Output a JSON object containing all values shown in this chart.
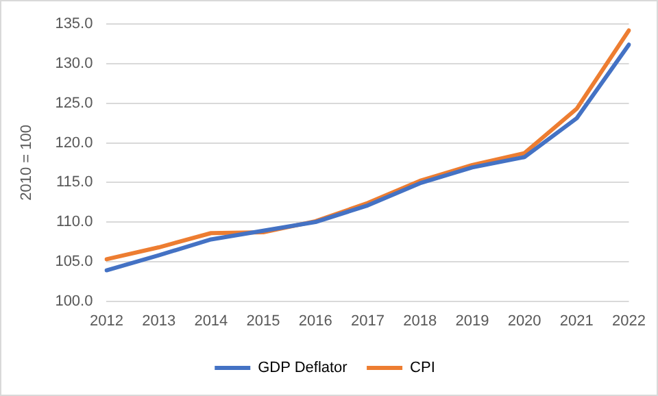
{
  "chart_data": {
    "type": "line",
    "ylabel": "2010 = 100",
    "categories": [
      "2012",
      "2013",
      "2014",
      "2015",
      "2016",
      "2017",
      "2018",
      "2019",
      "2020",
      "2021",
      "2022"
    ],
    "series": [
      {
        "name": "GDP Deflator",
        "color": "#4472c4",
        "values": [
          103.9,
          105.8,
          107.8,
          108.9,
          110.0,
          112.1,
          114.9,
          116.9,
          118.2,
          123.1,
          132.4
        ]
      },
      {
        "name": "CPI",
        "color": "#ed7d31",
        "values": [
          105.3,
          106.8,
          108.6,
          108.7,
          110.1,
          112.4,
          115.2,
          117.2,
          118.7,
          124.3,
          134.2
        ]
      }
    ],
    "ylim": [
      100,
      135
    ],
    "yticks": [
      {
        "value": 100,
        "label": "100.0"
      },
      {
        "value": 105,
        "label": "105.0"
      },
      {
        "value": 110,
        "label": "110.0"
      },
      {
        "value": 115,
        "label": "115.0"
      },
      {
        "value": 120,
        "label": "120.0"
      },
      {
        "value": 125,
        "label": "125.0"
      },
      {
        "value": 130,
        "label": "130.0"
      },
      {
        "value": 135,
        "label": "135.0"
      }
    ],
    "grid": "y",
    "legend": "bottom",
    "marker": "none",
    "line_style": "solid"
  }
}
